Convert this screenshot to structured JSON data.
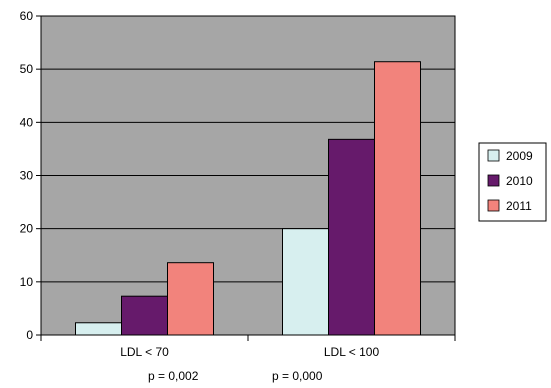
{
  "chart_data": {
    "type": "bar",
    "categories": [
      "LDL < 70",
      "LDL < 100"
    ],
    "series": [
      {
        "name": "2009",
        "values": [
          2.3,
          20.0
        ],
        "color": "#d7efef"
      },
      {
        "name": "2010",
        "values": [
          7.3,
          36.8
        ],
        "color": "#661a6b"
      },
      {
        "name": "2011",
        "values": [
          13.6,
          51.4
        ],
        "color": "#f2837c"
      }
    ],
    "ylim": [
      0,
      60
    ],
    "yticks": [
      "0",
      "10",
      "20",
      "30",
      "40",
      "50",
      "60"
    ],
    "plot_background": "#a6a6a6",
    "grid": true,
    "legend_position": "right",
    "annotations": [
      "p = 0,002",
      "p = 0,000"
    ]
  }
}
